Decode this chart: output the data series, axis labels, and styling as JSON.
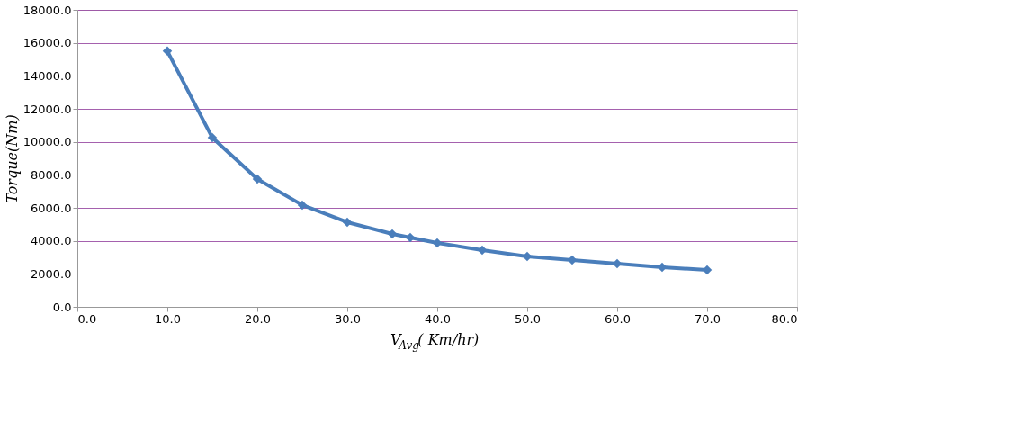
{
  "chart_data": {
    "type": "line",
    "xlabel": "V$_{Avg}$( Km/hr)",
    "ylabel": "Torque(Nm)",
    "x": [
      10,
      15,
      20,
      25,
      30,
      35,
      37,
      40,
      45,
      50,
      55,
      60,
      65,
      70
    ],
    "series": [
      {
        "color": "#4a7ebb",
        "values": [
          15500,
          10250,
          7750,
          6170,
          5130,
          4420,
          4200,
          3870,
          3440,
          3050,
          2840,
          2620,
          2400,
          2240
        ]
      }
    ],
    "xlim": [
      0,
      80
    ],
    "xticks": [
      {
        "value": 0,
        "label": "0.0"
      },
      {
        "value": 10,
        "label": "10.0"
      },
      {
        "value": 20,
        "label": "20.0"
      },
      {
        "value": 30,
        "label": "30.0"
      },
      {
        "value": 40,
        "label": "40.0"
      },
      {
        "value": 50,
        "label": "50.0"
      },
      {
        "value": 60,
        "label": "60.0"
      },
      {
        "value": 70,
        "label": "70.0"
      },
      {
        "value": 80,
        "label": "80.0"
      }
    ],
    "ylim": [
      0,
      18000
    ],
    "yticks": [
      {
        "value": 0,
        "label": "0.0"
      },
      {
        "value": 2000,
        "label": "2000.0"
      },
      {
        "value": 4000,
        "label": "4000.0"
      },
      {
        "value": 6000,
        "label": "6000.0"
      },
      {
        "value": 8000,
        "label": "8000.0"
      },
      {
        "value": 10000,
        "label": "10000.0"
      },
      {
        "value": 12000,
        "label": "12000.0"
      },
      {
        "value": 14000,
        "label": "14000.0"
      },
      {
        "value": 16000,
        "label": "16000.0"
      },
      {
        "value": 18000,
        "label": "18000.0"
      }
    ],
    "grid": "y",
    "marker": "diamond",
    "line_style": "solid"
  }
}
